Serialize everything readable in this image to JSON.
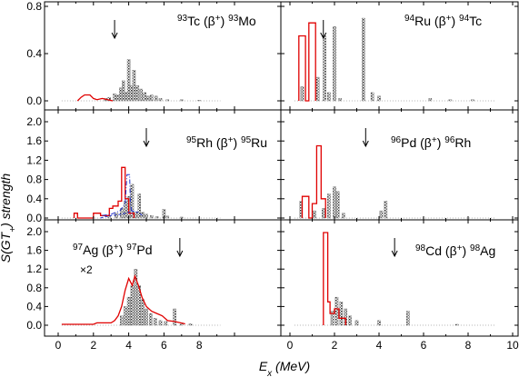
{
  "chart_data": {
    "type": "bar",
    "xlabel": "E_x (MeV)",
    "ylabel": "S(GT+) strength",
    "xlim": [
      0,
      10
    ],
    "x_ticks_left": [
      0,
      2,
      4,
      6,
      8
    ],
    "x_ticks_right": [
      0,
      2,
      4,
      6,
      8,
      10
    ],
    "scale_note": "×2",
    "panels": [
      {
        "id": "tc93",
        "label": {
          "a1": "93",
          "e1": "Tc",
          "mid": "β",
          "plus": "+",
          "a2": "93",
          "e2": "Mo"
        },
        "ylim": [
          0,
          0.8
        ],
        "y_ticks": [
          0.0,
          0.4,
          0.8
        ],
        "arrow_x": 3.2,
        "experimental_bars": [
          {
            "x": 2.7,
            "y": 0.02
          },
          {
            "x": 2.9,
            "y": 0.03
          },
          {
            "x": 3.2,
            "y": 0.06
          },
          {
            "x": 3.4,
            "y": 0.05
          },
          {
            "x": 3.55,
            "y": 0.11
          },
          {
            "x": 3.7,
            "y": 0.17
          },
          {
            "x": 3.85,
            "y": 0.07
          },
          {
            "x": 4.0,
            "y": 0.35
          },
          {
            "x": 4.15,
            "y": 0.13
          },
          {
            "x": 4.3,
            "y": 0.26
          },
          {
            "x": 4.5,
            "y": 0.13
          },
          {
            "x": 4.7,
            "y": 0.1
          },
          {
            "x": 4.9,
            "y": 0.07
          },
          {
            "x": 5.1,
            "y": 0.04
          },
          {
            "x": 5.3,
            "y": 0.05
          },
          {
            "x": 5.55,
            "y": 0.04
          },
          {
            "x": 5.8,
            "y": 0.02
          },
          {
            "x": 6.2,
            "y": 0.01
          },
          {
            "x": 7.0,
            "y": 0.01
          },
          {
            "x": 8.0,
            "y": 0.005
          }
        ],
        "theory_step": [
          [
            1.1,
            0.0
          ],
          [
            1.3,
            0.03
          ],
          [
            1.5,
            0.05
          ],
          [
            1.8,
            0.05
          ],
          [
            2.0,
            0.02
          ],
          [
            2.2,
            0.01
          ],
          [
            2.5,
            0.02
          ],
          [
            2.8,
            0.01
          ],
          [
            3.1,
            0.0
          ]
        ]
      },
      {
        "id": "ru94",
        "label": {
          "a1": "94",
          "e1": "Ru",
          "mid": "β",
          "plus": "+",
          "a2": "94",
          "e2": "Tc"
        },
        "ylim": [
          0,
          0.8
        ],
        "y_ticks": [
          0.0,
          0.4,
          0.8
        ],
        "arrow_x": 1.5,
        "experimental_bars": [
          {
            "x": 0.55,
            "y": 0.12
          },
          {
            "x": 1.25,
            "y": 0.2
          },
          {
            "x": 1.55,
            "y": 0.55
          },
          {
            "x": 1.75,
            "y": 0.07
          },
          {
            "x": 2.0,
            "y": 0.63
          },
          {
            "x": 2.25,
            "y": 0.02
          },
          {
            "x": 3.3,
            "y": 0.7
          },
          {
            "x": 3.7,
            "y": 0.07
          },
          {
            "x": 4.0,
            "y": 0.04
          },
          {
            "x": 6.3,
            "y": 0.02
          },
          {
            "x": 7.2,
            "y": 0.01
          },
          {
            "x": 8.2,
            "y": 0.01
          }
        ],
        "theory_step": [
          [
            0.4,
            0.0
          ],
          [
            0.4,
            0.55
          ],
          [
            0.7,
            0.55
          ],
          [
            0.7,
            0.0
          ],
          [
            0.85,
            0.0
          ],
          [
            0.85,
            0.66
          ],
          [
            1.15,
            0.66
          ],
          [
            1.15,
            0.0
          ]
        ]
      },
      {
        "id": "rh95",
        "label": {
          "a1": "95",
          "e1": "Rh",
          "mid": "β",
          "plus": "+",
          "a2": "95",
          "e2": "Ru"
        },
        "ylim": [
          0,
          2.0
        ],
        "y_ticks": [
          0.0,
          0.4,
          0.8,
          1.2,
          1.6,
          2.0
        ],
        "arrow_x": 5.0,
        "experimental_bars": [
          {
            "x": 2.9,
            "y": 0.05
          },
          {
            "x": 3.3,
            "y": 0.1
          },
          {
            "x": 3.6,
            "y": 0.2
          },
          {
            "x": 3.8,
            "y": 0.35
          },
          {
            "x": 4.0,
            "y": 0.45
          },
          {
            "x": 4.2,
            "y": 0.7
          },
          {
            "x": 4.4,
            "y": 0.12
          },
          {
            "x": 4.6,
            "y": 0.5
          },
          {
            "x": 4.8,
            "y": 0.12
          },
          {
            "x": 5.0,
            "y": 0.08
          },
          {
            "x": 5.3,
            "y": 0.05
          },
          {
            "x": 5.6,
            "y": 0.03
          },
          {
            "x": 6.0,
            "y": 0.18
          },
          {
            "x": 6.2,
            "y": 0.04
          },
          {
            "x": 7.0,
            "y": 0.02
          }
        ],
        "theory_step": [
          [
            0.9,
            0.0
          ],
          [
            0.9,
            0.1
          ],
          [
            1.1,
            0.1
          ],
          [
            1.1,
            0.0
          ],
          [
            2.0,
            0.0
          ],
          [
            2.0,
            0.1
          ],
          [
            2.4,
            0.1
          ],
          [
            2.4,
            0.05
          ],
          [
            2.9,
            0.05
          ],
          [
            2.9,
            0.2
          ],
          [
            3.1,
            0.2
          ],
          [
            3.1,
            0.25
          ],
          [
            3.4,
            0.25
          ],
          [
            3.4,
            0.35
          ],
          [
            3.6,
            0.35
          ],
          [
            3.6,
            1.05
          ],
          [
            3.8,
            1.05
          ],
          [
            3.8,
            0.4
          ],
          [
            4.0,
            0.4
          ],
          [
            4.0,
            0.1
          ],
          [
            4.3,
            0.1
          ],
          [
            4.3,
            0.0
          ]
        ],
        "blue_dashdot": [
          [
            2.5,
            0.05
          ],
          [
            3.0,
            0.08
          ],
          [
            3.5,
            0.15
          ],
          [
            3.8,
            0.3
          ],
          [
            3.9,
            0.9
          ],
          [
            4.05,
            0.9
          ],
          [
            4.1,
            0.3
          ],
          [
            4.2,
            0.05
          ]
        ],
        "blue_dashed": [
          [
            2.4,
            0.0
          ],
          [
            2.6,
            0.02
          ],
          [
            3.0,
            0.05
          ],
          [
            3.6,
            0.08
          ],
          [
            4.0,
            0.12
          ],
          [
            4.2,
            0.15
          ],
          [
            4.5,
            0.12
          ],
          [
            4.8,
            0.05
          ]
        ]
      },
      {
        "id": "pd96",
        "label": {
          "a1": "96",
          "e1": "Pd",
          "mid": "β",
          "plus": "+",
          "a2": "96",
          "e2": "Rh"
        },
        "ylim": [
          0,
          2.0
        ],
        "y_ticks": [
          0.0,
          0.4,
          0.8,
          1.2,
          1.6,
          2.0
        ],
        "arrow_x": 3.4,
        "experimental_bars": [
          {
            "x": 0.5,
            "y": 0.35
          },
          {
            "x": 1.1,
            "y": 0.15
          },
          {
            "x": 1.5,
            "y": 0.2
          },
          {
            "x": 1.75,
            "y": 0.5
          },
          {
            "x": 2.0,
            "y": 0.65
          },
          {
            "x": 2.15,
            "y": 0.55
          },
          {
            "x": 2.4,
            "y": 0.1
          },
          {
            "x": 4.1,
            "y": 0.15
          },
          {
            "x": 4.3,
            "y": 0.35
          }
        ],
        "theory_step": [
          [
            0.55,
            0.0
          ],
          [
            0.55,
            0.45
          ],
          [
            0.85,
            0.45
          ],
          [
            0.85,
            0.0
          ],
          [
            1.0,
            0.0
          ],
          [
            1.0,
            0.3
          ],
          [
            1.2,
            0.3
          ],
          [
            1.2,
            1.5
          ],
          [
            1.4,
            1.5
          ],
          [
            1.4,
            0.4
          ],
          [
            1.6,
            0.4
          ],
          [
            1.6,
            0.0
          ]
        ]
      },
      {
        "id": "ag97",
        "label": {
          "a1": "97",
          "e1": "Ag",
          "mid": "β",
          "plus": "+",
          "a2": "97",
          "e2": "Pd"
        },
        "ylim": [
          0,
          2.0
        ],
        "y_ticks": [
          0.0,
          0.4,
          0.8,
          1.2,
          1.6,
          2.0
        ],
        "arrow_x": 6.9,
        "experimental_bars": [
          {
            "x": 3.6,
            "y": 0.2
          },
          {
            "x": 3.8,
            "y": 0.4
          },
          {
            "x": 4.0,
            "y": 0.6
          },
          {
            "x": 4.2,
            "y": 0.85
          },
          {
            "x": 4.4,
            "y": 1.2
          },
          {
            "x": 4.6,
            "y": 0.85
          },
          {
            "x": 4.8,
            "y": 0.55
          },
          {
            "x": 5.0,
            "y": 0.35
          },
          {
            "x": 5.25,
            "y": 0.25
          },
          {
            "x": 5.5,
            "y": 0.15
          },
          {
            "x": 5.8,
            "y": 0.1
          },
          {
            "x": 6.1,
            "y": 0.08
          },
          {
            "x": 6.6,
            "y": 0.35
          },
          {
            "x": 7.0,
            "y": 0.05
          },
          {
            "x": 7.5,
            "y": 0.03
          }
        ],
        "theory_step": [
          [
            0.2,
            0.02
          ],
          [
            2.0,
            0.02
          ],
          [
            2.2,
            0.05
          ],
          [
            3.0,
            0.05
          ],
          [
            3.2,
            0.1
          ],
          [
            3.4,
            0.2
          ],
          [
            3.6,
            0.4
          ],
          [
            3.8,
            0.75
          ],
          [
            4.0,
            1.0
          ],
          [
            4.2,
            0.85
          ],
          [
            4.35,
            1.05
          ],
          [
            4.55,
            0.85
          ],
          [
            4.75,
            0.6
          ],
          [
            5.0,
            0.4
          ],
          [
            5.3,
            0.3
          ],
          [
            5.6,
            0.25
          ],
          [
            5.9,
            0.2
          ],
          [
            6.2,
            0.1
          ],
          [
            6.6,
            0.08
          ],
          [
            7.2,
            0.03
          ]
        ]
      },
      {
        "id": "cd98",
        "label": {
          "a1": "98",
          "e1": "Cd",
          "mid": "β",
          "plus": "+",
          "a2": "98",
          "e2": "Ag"
        },
        "ylim": [
          0,
          2.0
        ],
        "y_ticks": [
          0.0,
          0.4,
          0.8,
          1.2,
          1.6,
          2.0
        ],
        "arrow_x": 4.7,
        "experimental_bars": [
          {
            "x": 1.9,
            "y": 0.3
          },
          {
            "x": 2.1,
            "y": 0.6
          },
          {
            "x": 2.3,
            "y": 0.5
          },
          {
            "x": 2.5,
            "y": 0.35
          },
          {
            "x": 2.7,
            "y": 0.2
          },
          {
            "x": 3.0,
            "y": 0.1
          },
          {
            "x": 4.0,
            "y": 0.1
          },
          {
            "x": 5.3,
            "y": 0.3
          },
          {
            "x": 7.5,
            "y": 0.02
          }
        ],
        "theory_step": [
          [
            1.5,
            0.0
          ],
          [
            1.5,
            1.98
          ],
          [
            1.7,
            1.98
          ],
          [
            1.7,
            0.5
          ],
          [
            1.8,
            0.5
          ],
          [
            1.8,
            0.25
          ],
          [
            2.0,
            0.25
          ],
          [
            2.0,
            0.35
          ],
          [
            2.2,
            0.35
          ],
          [
            2.2,
            0.15
          ],
          [
            2.5,
            0.15
          ],
          [
            2.5,
            0.0
          ]
        ]
      }
    ]
  }
}
